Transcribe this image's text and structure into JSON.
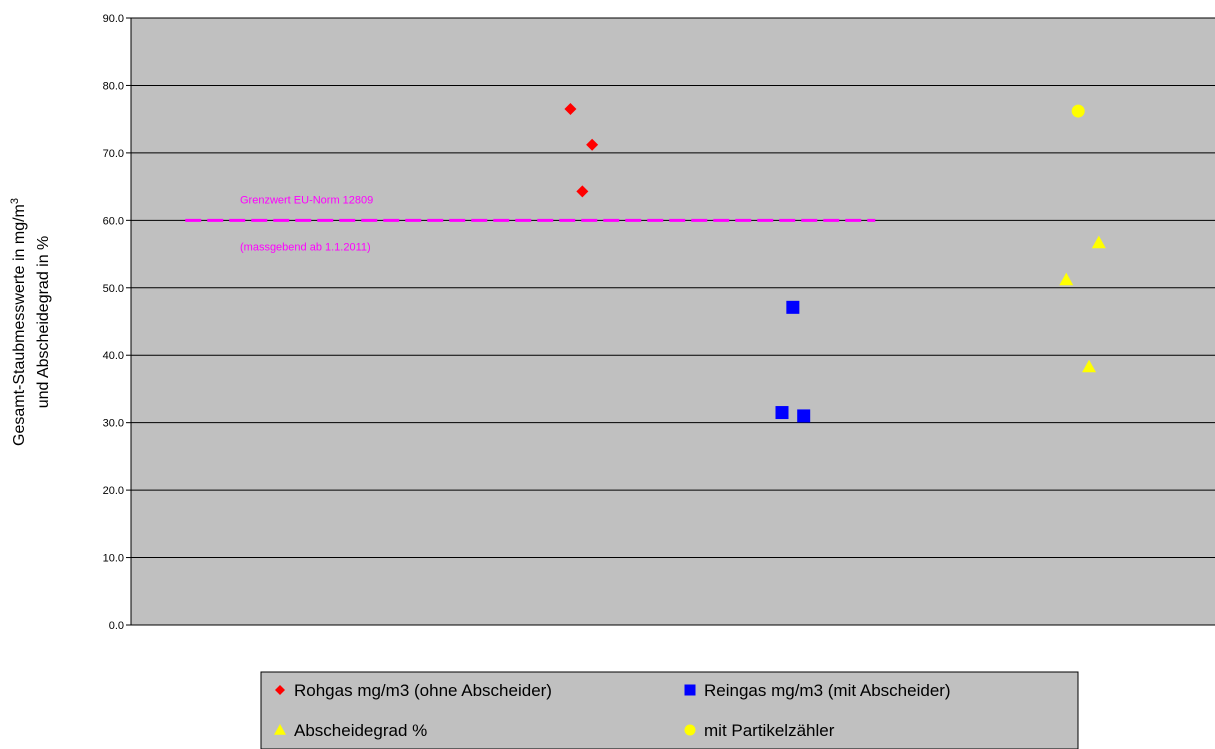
{
  "chart_data": {
    "type": "scatter",
    "title": "",
    "ylabel_line1_base": "Gesamt-Staubmesswerte in mg/m",
    "ylabel_line1_sup": "3",
    "ylabel_line2": "und Abscheidegrad in %",
    "ylim": [
      0,
      90
    ],
    "yticks": [
      "0.0",
      "10.0",
      "20.0",
      "30.0",
      "40.0",
      "50.0",
      "60.0",
      "70.0",
      "80.0",
      "90.0"
    ],
    "xlim": [
      0,
      1
    ],
    "grid": true,
    "plot_background": "#c0c0c0",
    "series": [
      {
        "name": "Rohgas mg/m3 (ohne Abscheider)",
        "marker": "diamond",
        "color": "#ff0000",
        "points": [
          {
            "x": 0.405,
            "y": 76.5
          },
          {
            "x": 0.425,
            "y": 71.2
          },
          {
            "x": 0.416,
            "y": 64.3
          }
        ]
      },
      {
        "name": "Reingas mg/m3 (mit Abscheider)",
        "marker": "square",
        "color": "#0000ff",
        "points": [
          {
            "x": 0.61,
            "y": 47.1
          },
          {
            "x": 0.6,
            "y": 31.5
          },
          {
            "x": 0.62,
            "y": 31.0
          }
        ]
      },
      {
        "name": "Abscheidegrad %",
        "marker": "triangle",
        "color": "#ffff00",
        "points": [
          {
            "x": 0.862,
            "y": 51.2
          },
          {
            "x": 0.892,
            "y": 56.7
          },
          {
            "x": 0.883,
            "y": 38.3
          }
        ]
      },
      {
        "name": "mit Partikelzähler",
        "marker": "circle",
        "color": "#ffff00",
        "points": [
          {
            "x": 0.873,
            "y": 76.2
          }
        ]
      }
    ],
    "reference_line": {
      "y": 60.0,
      "x_start": 0.05,
      "x_end": 0.686,
      "color": "#ff00ff",
      "label_line1": "Grenzwert EU-Norm 12809",
      "label_line2": "(massgebend ab 1.1.2011)"
    },
    "legend": {
      "placement": "bottom",
      "entries": [
        {
          "label": "Rohgas mg/m3 (ohne Abscheider)",
          "marker": "diamond",
          "color": "#ff0000"
        },
        {
          "label": "Reingas mg/m3 (mit Abscheider)",
          "marker": "square",
          "color": "#0000ff"
        },
        {
          "label": "Abscheidegrad %",
          "marker": "triangle",
          "color": "#ffff00"
        },
        {
          "label": "mit Partikelzähler",
          "marker": "circle",
          "color": "#ffff00"
        }
      ]
    }
  }
}
